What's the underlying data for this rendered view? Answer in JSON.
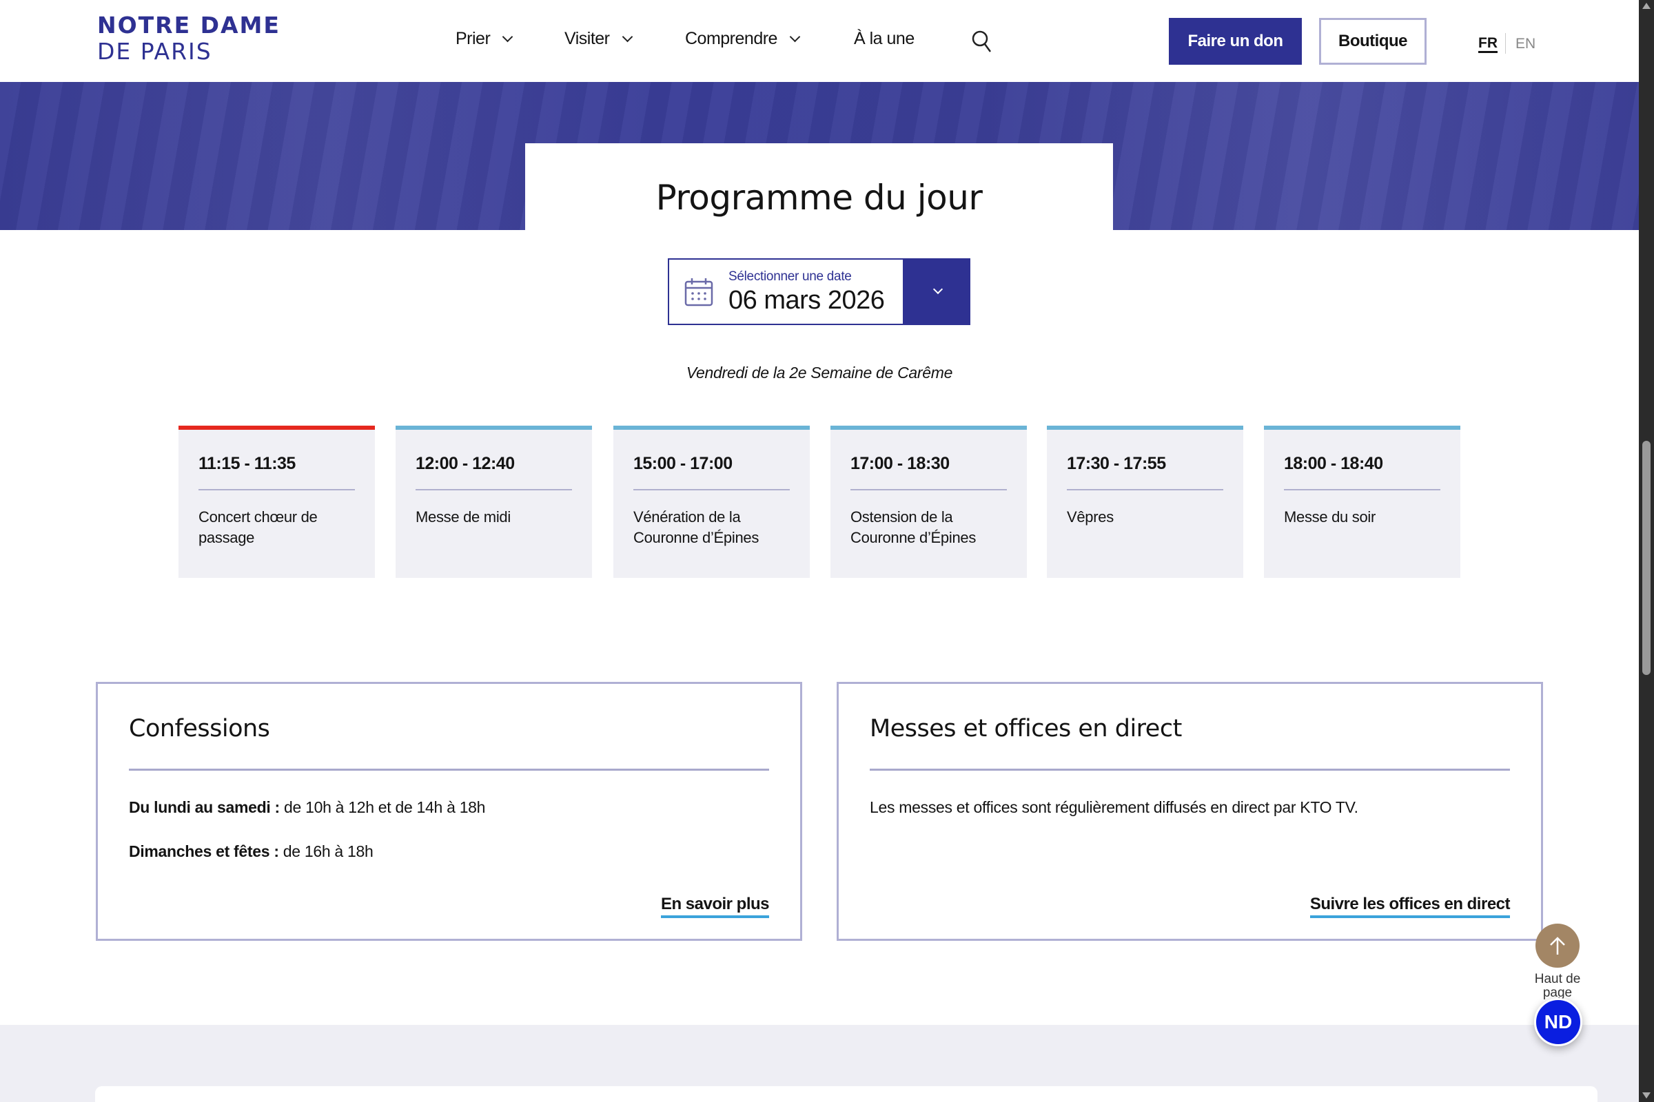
{
  "header": {
    "logo": {
      "line1": "NOTRE DAME",
      "line2": "DE PARIS"
    },
    "nav": [
      {
        "label": "Prier",
        "dropdown": true
      },
      {
        "label": "Visiter",
        "dropdown": true
      },
      {
        "label": "Comprendre",
        "dropdown": true
      },
      {
        "label": "À la une",
        "dropdown": false
      }
    ],
    "search_icon": "search-icon",
    "donate_label": "Faire un don",
    "shop_label": "Boutique",
    "languages": {
      "fr": "FR",
      "en": "EN",
      "active": "FR"
    }
  },
  "hero": {
    "title": "Programme du jour"
  },
  "date_picker": {
    "label": "Sélectionner une date",
    "value": "06 mars 2026",
    "icon": "calendar-icon"
  },
  "liturgical_day": "Vendredi de la 2e Semaine de Carême",
  "schedule": [
    {
      "time": "11:15 - 11:35",
      "title": "Concert chœur de passage",
      "current": true
    },
    {
      "time": "12:00 - 12:40",
      "title": "Messe de midi",
      "current": false
    },
    {
      "time": "15:00 - 17:00",
      "title": "Vénération de la Couronne d’Épines",
      "current": false
    },
    {
      "time": "17:00 - 18:30",
      "title": "Ostension de la Couronne d’Épines",
      "current": false
    },
    {
      "time": "17:30 - 17:55",
      "title": "Vêpres",
      "current": false
    },
    {
      "time": "18:00 - 18:40",
      "title": "Messe du soir",
      "current": false
    }
  ],
  "confessions": {
    "title": "Confessions",
    "line1_label": "Du lundi au samedi :",
    "line1_value": " de 10h à 12h et de 14h à 18h",
    "line2_label": "Dimanches et fêtes :",
    "line2_value": " de 16h à 18h",
    "link": "En savoir plus"
  },
  "live": {
    "title": "Messes et offices en direct",
    "text": "Les messes et offices sont régulièrement diffusés en direct par KTO TV.",
    "link": "Suivre les offices en direct"
  },
  "back_to_top": {
    "label": "Haut de page"
  },
  "nd_widget": {
    "label": "ND"
  },
  "colors": {
    "brand": "#2e3192",
    "current_event": "#e5281f",
    "event": "#6ab4d6",
    "link_underline": "#3ba3db",
    "back_to_top": "#a38665"
  }
}
